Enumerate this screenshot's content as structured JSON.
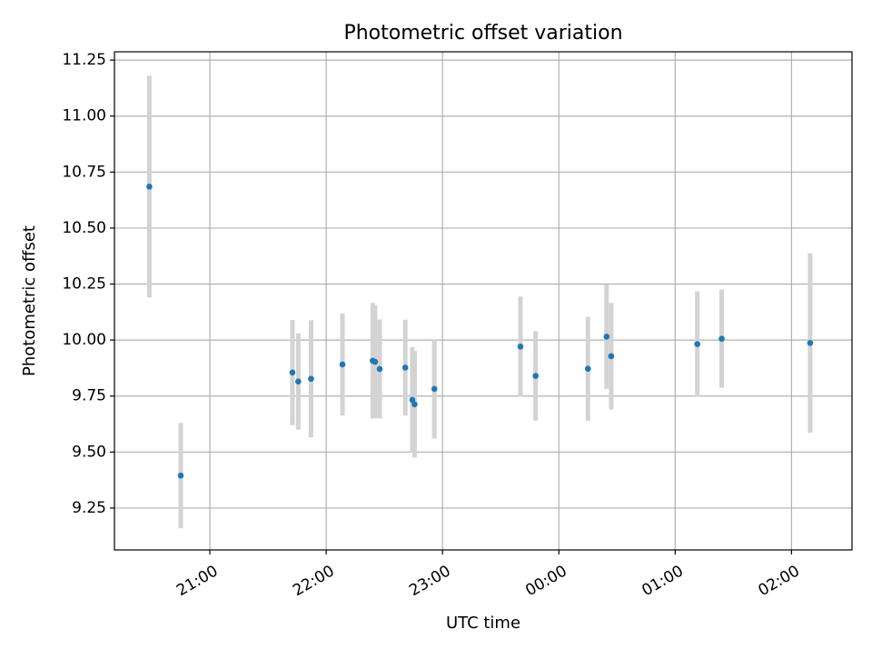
{
  "chart_data": {
    "type": "scatter",
    "title": "Photometric offset variation",
    "xlabel": "UTC time",
    "ylabel": "Photometric offset",
    "x_unit": "hours since 20:00 UTC",
    "xlim": [
      0.18,
      6.52
    ],
    "ylim": [
      9.063,
      11.287
    ],
    "grid": true,
    "x_ticks": [
      {
        "value": 1.0,
        "label": "21:00"
      },
      {
        "value": 2.0,
        "label": "22:00"
      },
      {
        "value": 3.0,
        "label": "23:00"
      },
      {
        "value": 4.0,
        "label": "00:00"
      },
      {
        "value": 5.0,
        "label": "01:00"
      },
      {
        "value": 6.0,
        "label": "02:00"
      }
    ],
    "y_ticks": [
      {
        "value": 9.25,
        "label": "9.25"
      },
      {
        "value": 9.5,
        "label": "9.50"
      },
      {
        "value": 9.75,
        "label": "9.75"
      },
      {
        "value": 10.0,
        "label": "10.00"
      },
      {
        "value": 10.25,
        "label": "10.25"
      },
      {
        "value": 10.5,
        "label": "10.50"
      },
      {
        "value": 10.75,
        "label": "10.75"
      },
      {
        "value": 11.0,
        "label": "11.00"
      },
      {
        "value": 11.25,
        "label": "11.25"
      }
    ],
    "series": [
      {
        "name": "",
        "color": "#1f77b4",
        "error_color": "#d3d3d3",
        "points": [
          {
            "x": 0.48,
            "y": 10.685,
            "err": 0.495
          },
          {
            "x": 0.75,
            "y": 9.395,
            "err": 0.235
          },
          {
            "x": 1.71,
            "y": 9.855,
            "err": 0.235
          },
          {
            "x": 1.76,
            "y": 9.815,
            "err": 0.215
          },
          {
            "x": 1.87,
            "y": 9.827,
            "err": 0.262
          },
          {
            "x": 2.14,
            "y": 9.891,
            "err": 0.228
          },
          {
            "x": 2.4,
            "y": 9.908,
            "err": 0.258
          },
          {
            "x": 2.42,
            "y": 9.903,
            "err": 0.252
          },
          {
            "x": 2.46,
            "y": 9.871,
            "err": 0.221
          },
          {
            "x": 2.68,
            "y": 9.877,
            "err": 0.214
          },
          {
            "x": 2.74,
            "y": 9.733,
            "err": 0.235
          },
          {
            "x": 2.76,
            "y": 9.713,
            "err": 0.238
          },
          {
            "x": 2.93,
            "y": 9.782,
            "err": 0.222
          },
          {
            "x": 3.67,
            "y": 9.971,
            "err": 0.224
          },
          {
            "x": 3.8,
            "y": 9.84,
            "err": 0.2
          },
          {
            "x": 4.25,
            "y": 9.872,
            "err": 0.232
          },
          {
            "x": 4.41,
            "y": 10.015,
            "err": 0.233
          },
          {
            "x": 4.45,
            "y": 9.928,
            "err": 0.238
          },
          {
            "x": 5.19,
            "y": 9.982,
            "err": 0.235
          },
          {
            "x": 5.4,
            "y": 10.006,
            "err": 0.219
          },
          {
            "x": 6.16,
            "y": 9.987,
            "err": 0.401
          }
        ]
      }
    ]
  }
}
